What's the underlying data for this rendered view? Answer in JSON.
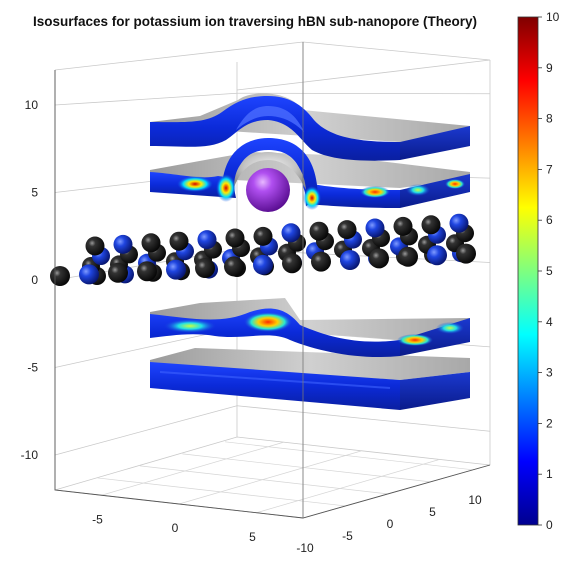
{
  "chart_data": {
    "type": "isosurface-3d",
    "title": "Isosurfaces for potassium ion traversing hBN sub-nanopore (Theory)",
    "axes": {
      "z_ticks": [
        "10",
        "5",
        "0",
        "-5",
        "-10"
      ],
      "x_ticks": [
        "-5",
        "0",
        "5"
      ],
      "y_ticks": [
        "10",
        "5",
        "0",
        "-5",
        "-10"
      ],
      "zlim": [
        -12,
        12
      ],
      "xlim": [
        -8,
        8
      ],
      "ylim": [
        -10,
        12
      ]
    },
    "colorbar": {
      "range": [
        0,
        10
      ],
      "ticks": [
        "10",
        "9",
        "8",
        "7",
        "6",
        "5",
        "4",
        "3",
        "2",
        "1",
        "0"
      ],
      "colormap": "jet"
    },
    "layers": [
      {
        "name": "upper-slab",
        "z_center": 8.8
      },
      {
        "name": "upper-density-slab",
        "z_center": 5.0
      },
      {
        "name": "hBN-sheet",
        "z_center": 0.0
      },
      {
        "name": "lower-density-slab",
        "z_center": -3.8
      },
      {
        "name": "lower-slab",
        "z_center": -6.5
      }
    ],
    "ion": {
      "species": "potassium",
      "z": 4.6,
      "color": "#9a30d8"
    },
    "grid": true
  },
  "colors": {
    "slab_blue": "#1232d8",
    "slab_gray": "#b7b7b7",
    "atom_black": "#111111",
    "atom_blue": "#1a3fd0",
    "ion_purple": "#9a30d8"
  }
}
